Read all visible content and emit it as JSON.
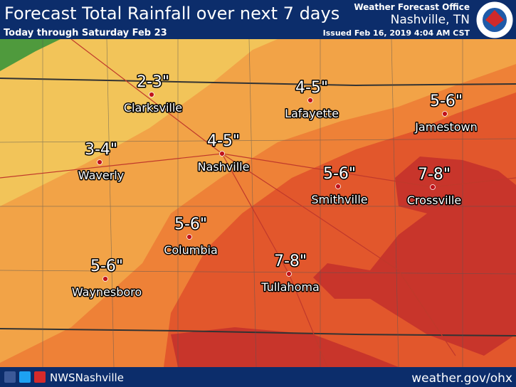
{
  "header": {
    "title": "Forecast Total Rainfall over next 7 days",
    "subtitle": "Today through Saturday Feb 23",
    "office": "Weather Forecast Office",
    "location": "Nashville, TN",
    "issued": "Issued Feb 16, 2019 4:04 AM CST"
  },
  "cities": [
    {
      "name": "Clarksville",
      "amount": "2-3\""
    },
    {
      "name": "Lafayette",
      "amount": "4-5\""
    },
    {
      "name": "Jamestown",
      "amount": "5-6\""
    },
    {
      "name": "Nashville",
      "amount": "4-5\""
    },
    {
      "name": "Waverly",
      "amount": "3-4\""
    },
    {
      "name": "Smithville",
      "amount": "5-6\""
    },
    {
      "name": "Crossville",
      "amount": "7-8\""
    },
    {
      "name": "Columbia",
      "amount": "5-6\""
    },
    {
      "name": "Tullahoma",
      "amount": "7-8\""
    },
    {
      "name": "Waynesboro",
      "amount": "5-6\""
    }
  ],
  "footer": {
    "social": "NWSNashville",
    "url": "weather.gov/ohx"
  }
}
